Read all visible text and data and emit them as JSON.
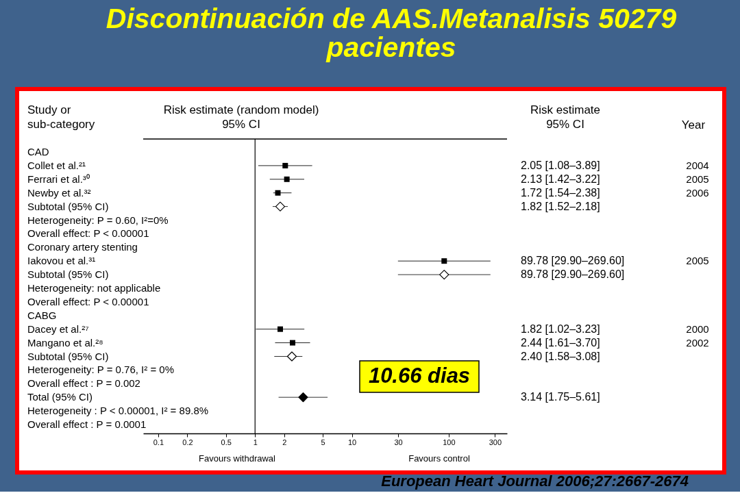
{
  "chart_data": {
    "type": "scatter",
    "orientation": "horizontal",
    "title": "Discontinuación de AAS.Metanalisis 50279 pacientes",
    "ylabel": "Study or sub-category",
    "xlabel": "Risk estimate (random model) 95% CI",
    "categories": [
      "CAD",
      "Collet et al.²¹",
      "Ferrari et al.³⁰",
      "Newby et al.³²",
      "Subtotal (95% CI)",
      "Heterogeneity: P = 0.60, I²=0%",
      "Overall effect: P < 0.00001",
      "Coronary artery stenting",
      "Iakovou et al.³¹",
      "Subtotal (95% CI)",
      "Heterogeneity: not applicable",
      "Overall effect: P < 0.00001",
      "CABG",
      "Dacey et al.²⁷",
      "Mangano et al.²⁸",
      "Subtotal (95% CI)",
      "Heterogeneity: P = 0.76, I² = 0%",
      "Overall effect : P = 0.002",
      "Total (95% CI)",
      "Heterogeneity : P < 0.00001, I² = 89.8%",
      "Overall effect : P = 0.0001"
    ],
    "y2_categories": [
      null,
      "2.05 [1.08–3.89]",
      "2.13 [1.42–3.22]",
      "1.72 [1.54–2.38]",
      "1.82 [1.52–2.18]",
      null,
      null,
      null,
      "89.78 [29.90–269.60]",
      "89.78 [29.90–269.60]",
      null,
      null,
      null,
      "1.82 [1.02–3.23]",
      "2.44 [1.61–3.70]",
      "2.40 [1.58–3.08]",
      null,
      null,
      "3.14 [1.75–5.61]",
      null,
      null
    ],
    "xlim": [
      0.07,
      400
    ],
    "xticks": [
      0.1,
      0.2,
      0.5,
      1,
      2,
      5,
      10,
      30,
      100,
      300
    ],
    "log": "x",
    "ref_lines": [
      {
        "axis": "x",
        "value": 1,
        "color": "#000000"
      }
    ],
    "series": [
      {
        "marker": "square",
        "color": "#000000",
        "values": [
          null,
          2.05,
          2.13,
          1.72,
          null,
          null,
          null,
          null,
          89.78,
          null,
          null,
          null,
          null,
          1.82,
          2.44,
          null,
          null,
          null,
          null,
          null,
          null
        ],
        "errors": [
          null,
          [
            1.08,
            3.89
          ],
          [
            1.42,
            3.22
          ],
          [
            1.54,
            2.38
          ],
          null,
          null,
          null,
          null,
          [
            29.9,
            269.6
          ],
          null,
          null,
          null,
          null,
          [
            1.02,
            3.23
          ],
          [
            1.61,
            3.7
          ],
          null,
          null,
          null,
          null,
          null,
          null
        ]
      },
      {
        "marker": "diamond",
        "color": "#ffffff",
        "values": [
          null,
          null,
          null,
          null,
          1.82,
          null,
          null,
          null,
          null,
          89.78,
          null,
          null,
          null,
          null,
          null,
          2.4,
          null,
          null,
          null,
          null,
          null
        ],
        "errors": [
          null,
          null,
          null,
          null,
          [
            1.52,
            2.18
          ],
          null,
          null,
          null,
          null,
          [
            29.9,
            269.6
          ],
          null,
          null,
          null,
          null,
          null,
          [
            1.58,
            3.08
          ],
          null,
          null,
          null,
          null,
          null
        ]
      },
      {
        "marker": "diamond",
        "color": "#000000",
        "values": [
          null,
          null,
          null,
          null,
          null,
          null,
          null,
          null,
          null,
          null,
          null,
          null,
          null,
          null,
          null,
          null,
          null,
          null,
          3.14,
          null,
          null
        ],
        "errors": [
          null,
          null,
          null,
          null,
          null,
          null,
          null,
          null,
          null,
          null,
          null,
          null,
          null,
          null,
          null,
          null,
          null,
          null,
          [
            1.75,
            5.61
          ],
          null,
          null
        ]
      }
    ],
    "annotations": [
      "Risk estimate 95% CI",
      "Year",
      "Favours withdrawal",
      "Favours control",
      "10.66 dias",
      "European Heart Journal  2006;27:2667-2674",
      "2004",
      "2005",
      "2006",
      "2005",
      "2000",
      "2002"
    ]
  }
}
